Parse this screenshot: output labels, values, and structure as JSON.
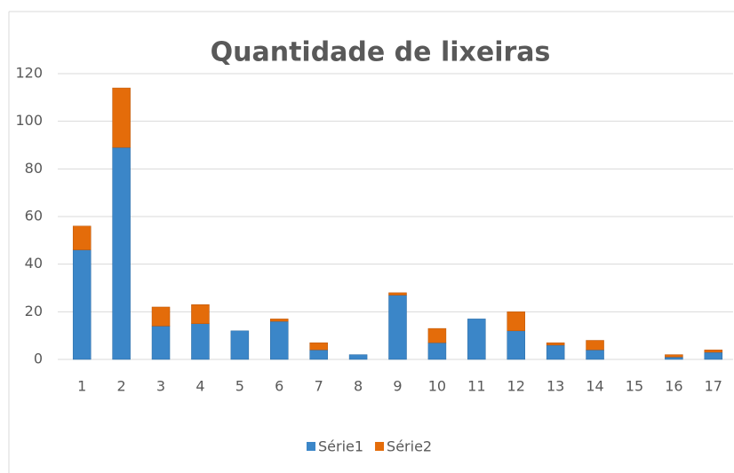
{
  "chart_data": {
    "type": "stacked_bar",
    "title": "Quantidade de lixeiras",
    "categories": [
      "1",
      "2",
      "3",
      "4",
      "5",
      "6",
      "7",
      "8",
      "9",
      "10",
      "11",
      "12",
      "13",
      "14",
      "15",
      "16",
      "17"
    ],
    "series": [
      {
        "name": "Série1",
        "color": "#3b86c8",
        "values": [
          46,
          89,
          14,
          15,
          12,
          16,
          4,
          2,
          27,
          7,
          17,
          12,
          6,
          4,
          0,
          1,
          3
        ]
      },
      {
        "name": "Série2",
        "color": "#e46c0a",
        "values": [
          10,
          25,
          8,
          8,
          0,
          1,
          3,
          0,
          1,
          6,
          0,
          8,
          1,
          4,
          0,
          1,
          1
        ]
      }
    ],
    "ylim": [
      0,
      120
    ],
    "yticks": [
      0,
      20,
      40,
      60,
      80,
      100,
      120
    ],
    "grid": true,
    "legend": "bottom"
  }
}
